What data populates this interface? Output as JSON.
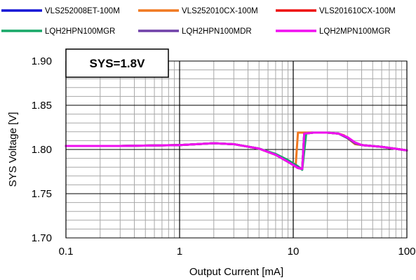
{
  "chart_data": {
    "type": "line",
    "annotation": "SYS=1.8V",
    "xlabel": "Output Current [mA]",
    "ylabel": "SYS  Voltage [V]",
    "x_scale": "log",
    "xlim": [
      0.1,
      100
    ],
    "ylim": [
      1.7,
      1.9
    ],
    "x_ticks": [
      0.1,
      1,
      10,
      100
    ],
    "x_tick_labels": [
      "0.1",
      "1",
      "10",
      "100"
    ],
    "y_ticks": [
      1.7,
      1.75,
      1.8,
      1.85,
      1.9
    ],
    "y_tick_labels": [
      "1.70",
      "1.75",
      "1.80",
      "1.85",
      "1.90"
    ],
    "grid": true,
    "legend_position": "top",
    "series": [
      {
        "name": "VLS252008ET-100M",
        "color": "#1515d6",
        "x": [
          0.1,
          0.3,
          1,
          2,
          3,
          5,
          7,
          9,
          11,
          12,
          12.5,
          15,
          20,
          25,
          30,
          35,
          40,
          60,
          100
        ],
        "y": [
          1.804,
          1.804,
          1.805,
          1.807,
          1.806,
          1.801,
          1.794,
          1.786,
          1.779,
          1.778,
          1.818,
          1.819,
          1.819,
          1.818,
          1.813,
          1.807,
          1.805,
          1.803,
          1.799
        ]
      },
      {
        "name": "VLS252010CX-100M",
        "color": "#f07820",
        "x": [
          0.1,
          0.3,
          1,
          2,
          3,
          5,
          7,
          9,
          10.5,
          11,
          15,
          20,
          25,
          28,
          32,
          35,
          40,
          60,
          100
        ],
        "y": [
          1.804,
          1.804,
          1.805,
          1.807,
          1.806,
          1.801,
          1.794,
          1.787,
          1.781,
          1.819,
          1.819,
          1.819,
          1.818,
          1.816,
          1.81,
          1.806,
          1.805,
          1.803,
          1.799
        ]
      },
      {
        "name": "VLS201610CX-100M",
        "color": "#ee1111",
        "x": [
          0.1,
          0.3,
          1,
          2,
          3,
          5,
          7,
          9,
          11,
          12,
          12.5,
          15,
          20,
          25,
          30,
          35,
          40,
          60,
          100
        ],
        "y": [
          1.804,
          1.804,
          1.805,
          1.807,
          1.806,
          1.801,
          1.794,
          1.786,
          1.779,
          1.778,
          1.818,
          1.819,
          1.819,
          1.818,
          1.813,
          1.807,
          1.805,
          1.803,
          1.799
        ]
      },
      {
        "name": "LQH2HPN100MGR",
        "color": "#18a868",
        "x": [
          0.1,
          0.3,
          1,
          2,
          3,
          5,
          7,
          9,
          11,
          12,
          13,
          15,
          20,
          25,
          30,
          35,
          40,
          60,
          100
        ],
        "y": [
          1.804,
          1.804,
          1.805,
          1.807,
          1.806,
          1.801,
          1.795,
          1.788,
          1.781,
          1.777,
          1.818,
          1.819,
          1.819,
          1.818,
          1.813,
          1.807,
          1.805,
          1.803,
          1.799
        ]
      },
      {
        "name": "LQH2HPN100MDR",
        "color": "#7040a8",
        "x": [
          0.1,
          0.3,
          1,
          2,
          3,
          5,
          7,
          9,
          11,
          12,
          12.5,
          15,
          20,
          25,
          30,
          35,
          40,
          60,
          100
        ],
        "y": [
          1.804,
          1.804,
          1.805,
          1.807,
          1.806,
          1.801,
          1.794,
          1.786,
          1.78,
          1.778,
          1.818,
          1.819,
          1.819,
          1.818,
          1.813,
          1.807,
          1.805,
          1.803,
          1.799
        ]
      },
      {
        "name": "LQH2MPN100MGR",
        "color": "#f010f0",
        "x": [
          0.1,
          0.3,
          1,
          2,
          3,
          5,
          7,
          9,
          11,
          12,
          12.5,
          15,
          20,
          25,
          30,
          35,
          40,
          60,
          100
        ],
        "y": [
          1.804,
          1.804,
          1.805,
          1.807,
          1.806,
          1.801,
          1.794,
          1.786,
          1.779,
          1.778,
          1.818,
          1.819,
          1.819,
          1.818,
          1.814,
          1.808,
          1.805,
          1.803,
          1.799
        ]
      }
    ]
  }
}
